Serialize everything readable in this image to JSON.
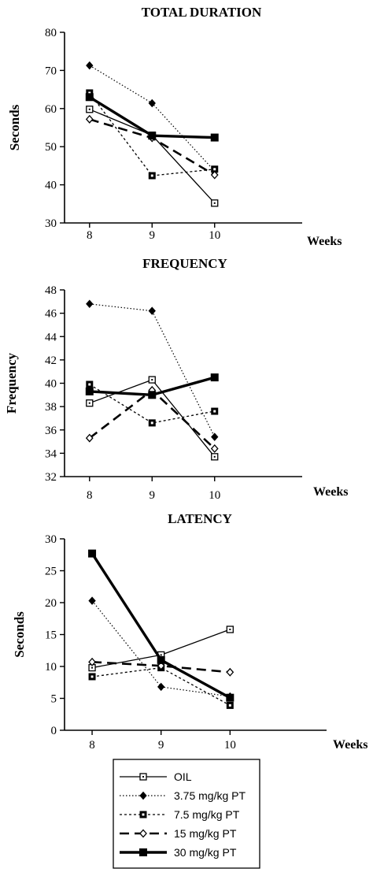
{
  "chart_data": [
    {
      "type": "line",
      "title": "TOTAL DURATION",
      "xlabel": "Weeks",
      "ylabel": "Seconds",
      "x": [
        8,
        9,
        10
      ],
      "xlim": [
        7.6,
        11.4
      ],
      "ylim": [
        30,
        80
      ],
      "yticks": [
        30,
        40,
        50,
        60,
        70,
        80
      ],
      "grid": false,
      "series": [
        {
          "name": "OIL",
          "values": [
            59.8,
            53.0,
            35.2
          ]
        },
        {
          "name": "3.75 mg/kg PT",
          "values": [
            71.3,
            61.4,
            43.6
          ]
        },
        {
          "name": "7.5 mg/kg PT",
          "values": [
            64.1,
            42.4,
            44.1
          ]
        },
        {
          "name": "15 mg/kg PT",
          "values": [
            57.2,
            52.3,
            42.6
          ]
        },
        {
          "name": "30 mg/kg PT",
          "values": [
            63.0,
            52.9,
            52.4
          ]
        }
      ]
    },
    {
      "type": "line",
      "title": "FREQUENCY",
      "xlabel": "Weeks",
      "ylabel": "Frequency",
      "x": [
        8,
        9,
        10
      ],
      "xlim": [
        7.6,
        11.4
      ],
      "ylim": [
        32,
        48
      ],
      "yticks": [
        32,
        34,
        36,
        38,
        40,
        42,
        44,
        46,
        48
      ],
      "grid": false,
      "series": [
        {
          "name": "OIL",
          "values": [
            38.3,
            40.3,
            33.7
          ]
        },
        {
          "name": "3.75 mg/kg PT",
          "values": [
            46.8,
            46.2,
            35.4
          ]
        },
        {
          "name": "7.5 mg/kg PT",
          "values": [
            39.9,
            36.6,
            37.6
          ]
        },
        {
          "name": "15 mg/kg PT",
          "values": [
            35.3,
            39.4,
            34.4
          ]
        },
        {
          "name": "30 mg/kg PT",
          "values": [
            39.3,
            39.0,
            40.5
          ]
        }
      ]
    },
    {
      "type": "line",
      "title": "LATENCY",
      "xlabel": "Weeks",
      "ylabel": "Seconds",
      "x": [
        8,
        9,
        10
      ],
      "xlim": [
        7.6,
        11.4
      ],
      "ylim": [
        0,
        30
      ],
      "yticks": [
        0,
        5,
        10,
        15,
        20,
        25,
        30
      ],
      "grid": false,
      "series": [
        {
          "name": "OIL",
          "values": [
            9.8,
            11.8,
            15.8
          ]
        },
        {
          "name": "3.75 mg/kg PT",
          "values": [
            20.3,
            6.8,
            5.3
          ]
        },
        {
          "name": "7.5 mg/kg PT",
          "values": [
            8.4,
            9.8,
            3.9
          ]
        },
        {
          "name": "15 mg/kg PT",
          "values": [
            10.7,
            10.1,
            9.1
          ]
        },
        {
          "name": "30 mg/kg PT",
          "values": [
            27.7,
            11.0,
            5.1
          ]
        }
      ]
    }
  ],
  "legend": {
    "placement": "bottom",
    "entries": [
      {
        "label": "OIL",
        "line_style": "solid",
        "marker": "open-square"
      },
      {
        "label": "3.75 mg/kg PT",
        "line_style": "dotted",
        "marker": "filled-diamond"
      },
      {
        "label": "7.5 mg/kg PT",
        "line_style": "dashed",
        "marker": "dotted-square"
      },
      {
        "label": "15 mg/kg PT",
        "line_style": "long-dashed",
        "marker": "open-diamond"
      },
      {
        "label": "30 mg/kg PT",
        "line_style": "thick-solid",
        "marker": "filled-square"
      }
    ]
  }
}
